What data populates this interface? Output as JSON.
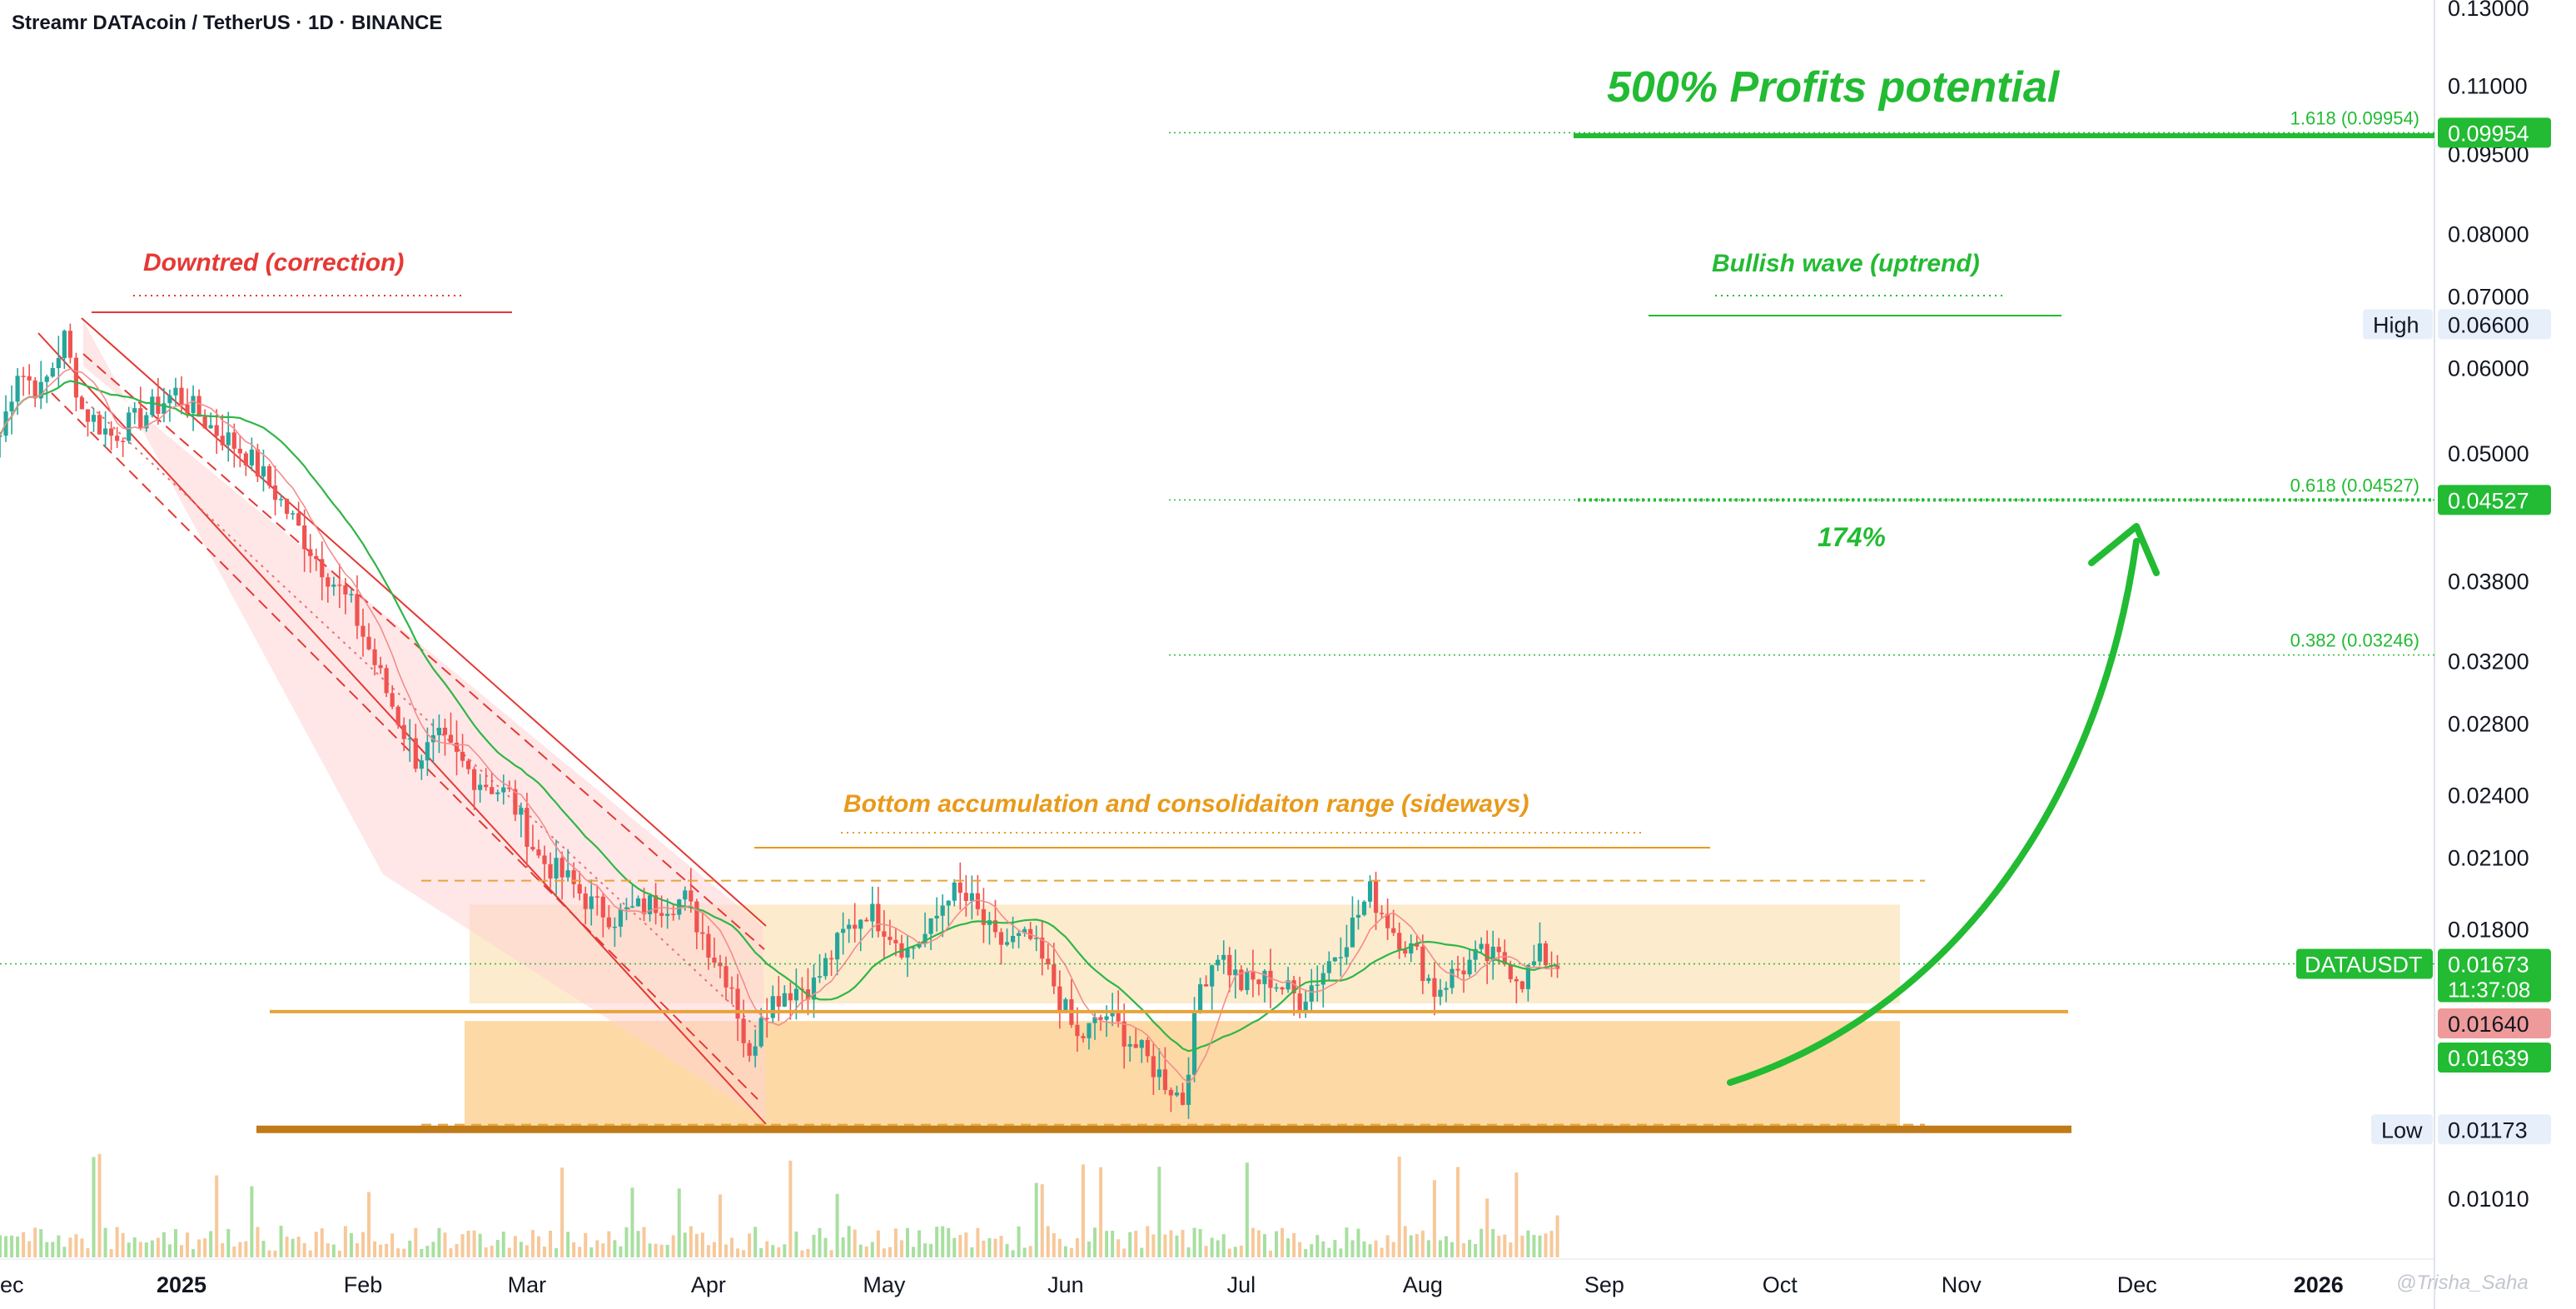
{
  "header": {
    "title": "Streamr DATAcoin / TetherUS · 1D · BINANCE"
  },
  "annotations": {
    "profits": "500% Profits potential",
    "downtrend": "Downtred (correction)",
    "bullish": "Bullish wave (uptrend)",
    "accumulation": "Bottom accumulation and consolidaiton range (sideways)",
    "pct174": "174%"
  },
  "fib": [
    {
      "label": "1.618 (0.09954)",
      "value": 0.09954
    },
    {
      "label": "0.618 (0.04527)",
      "value": 0.04527
    },
    {
      "label": "0.382 (0.03246)",
      "value": 0.03246
    }
  ],
  "price_labels": {
    "fib_top": "0.09954",
    "high_tag": "High",
    "high_value": "0.06600",
    "fib_mid": "0.04527",
    "symbol": "DATAUSDT",
    "last_price": "0.01673",
    "countdown": "11:37:08",
    "red_price": "0.01640",
    "green_price": "0.01639",
    "low_tag": "Low",
    "low_value": "0.01173"
  },
  "watermark": "@Trisha_Saha",
  "colors": {
    "up": "#26a69a",
    "down": "#ef5350",
    "orange": "#e8a33a",
    "green": "#22bb33",
    "red": "#e53935"
  },
  "chart_data": {
    "type": "candlestick",
    "title": "Streamr DATAcoin / TetherUS · 1D · BINANCE",
    "y_scale": "log",
    "y_ticks": [
      0.0101,
      0.01173,
      0.01639,
      0.018,
      0.021,
      0.024,
      0.028,
      0.032,
      0.038,
      0.04527,
      0.05,
      0.06,
      0.066,
      0.07,
      0.08,
      0.095,
      0.09954,
      0.11,
      0.13
    ],
    "y_tick_labels": [
      "0.01010",
      "0.01173",
      "0.01639",
      "0.01800",
      "0.02100",
      "0.02400",
      "0.02800",
      "0.03200",
      "0.03800",
      "0.04527",
      "0.05000",
      "0.06000",
      "0.06600",
      "0.07000",
      "0.08000",
      "0.09500",
      "0.09954",
      "0.11000",
      "0.13000"
    ],
    "x_tick_labels": [
      "ec",
      "2025",
      "Feb",
      "Mar",
      "Apr",
      "May",
      "Jun",
      "Jul",
      "Aug",
      "Sep",
      "Oct",
      "Nov",
      "Dec",
      "2026"
    ],
    "x_tick_dates": [
      "2024-12-01",
      "2025-01-01",
      "2025-02-01",
      "2025-03-01",
      "2025-04-01",
      "2025-05-01",
      "2025-06-01",
      "2025-07-01",
      "2025-08-01",
      "2025-09-01",
      "2025-10-01",
      "2025-11-01",
      "2025-12-01",
      "2026-01-01"
    ],
    "last_price": 0.01673,
    "high": 0.066,
    "low": 0.01173,
    "price_path": [
      {
        "date": "2024-12-01",
        "price": 0.052
      },
      {
        "date": "2024-12-04",
        "price": 0.06
      },
      {
        "date": "2024-12-08",
        "price": 0.057
      },
      {
        "date": "2024-12-12",
        "price": 0.064
      },
      {
        "date": "2024-12-15",
        "price": 0.055
      },
      {
        "date": "2024-12-20",
        "price": 0.052
      },
      {
        "date": "2024-12-25",
        "price": 0.054
      },
      {
        "date": "2024-12-31",
        "price": 0.057
      },
      {
        "date": "2025-01-06",
        "price": 0.053
      },
      {
        "date": "2025-01-12",
        "price": 0.05
      },
      {
        "date": "2025-01-17",
        "price": 0.046
      },
      {
        "date": "2025-01-24",
        "price": 0.04
      },
      {
        "date": "2025-01-30",
        "price": 0.036
      },
      {
        "date": "2025-02-05",
        "price": 0.03
      },
      {
        "date": "2025-02-10",
        "price": 0.026
      },
      {
        "date": "2025-02-14",
        "price": 0.027
      },
      {
        "date": "2025-02-20",
        "price": 0.025
      },
      {
        "date": "2025-02-26",
        "price": 0.024
      },
      {
        "date": "2025-03-03",
        "price": 0.021
      },
      {
        "date": "2025-03-08",
        "price": 0.02
      },
      {
        "date": "2025-03-12",
        "price": 0.019
      },
      {
        "date": "2025-03-16",
        "price": 0.0185
      },
      {
        "date": "2025-03-22",
        "price": 0.019
      },
      {
        "date": "2025-03-28",
        "price": 0.0192
      },
      {
        "date": "2025-04-02",
        "price": 0.017
      },
      {
        "date": "2025-04-05",
        "price": 0.016
      },
      {
        "date": "2025-04-08",
        "price": 0.0135
      },
      {
        "date": "2025-04-10",
        "price": 0.0152
      },
      {
        "date": "2025-04-14",
        "price": 0.0158
      },
      {
        "date": "2025-04-19",
        "price": 0.016
      },
      {
        "date": "2025-04-24",
        "price": 0.0178
      },
      {
        "date": "2025-04-28",
        "price": 0.0188
      },
      {
        "date": "2025-05-01",
        "price": 0.0182
      },
      {
        "date": "2025-05-05",
        "price": 0.0172
      },
      {
        "date": "2025-05-09",
        "price": 0.018
      },
      {
        "date": "2025-05-12",
        "price": 0.0196
      },
      {
        "date": "2025-05-16",
        "price": 0.019
      },
      {
        "date": "2025-05-20",
        "price": 0.0175
      },
      {
        "date": "2025-05-26",
        "price": 0.0176
      },
      {
        "date": "2025-05-30",
        "price": 0.016
      },
      {
        "date": "2025-06-03",
        "price": 0.0142
      },
      {
        "date": "2025-06-08",
        "price": 0.015
      },
      {
        "date": "2025-06-13",
        "price": 0.014
      },
      {
        "date": "2025-06-17",
        "price": 0.0132
      },
      {
        "date": "2025-06-21",
        "price": 0.0125
      },
      {
        "date": "2025-06-24",
        "price": 0.016
      },
      {
        "date": "2025-06-27",
        "price": 0.0172
      },
      {
        "date": "2025-07-01",
        "price": 0.016
      },
      {
        "date": "2025-07-06",
        "price": 0.0162
      },
      {
        "date": "2025-07-11",
        "price": 0.0155
      },
      {
        "date": "2025-07-15",
        "price": 0.0165
      },
      {
        "date": "2025-07-19",
        "price": 0.0178
      },
      {
        "date": "2025-07-23",
        "price": 0.0195
      },
      {
        "date": "2025-07-27",
        "price": 0.018
      },
      {
        "date": "2025-07-31",
        "price": 0.017
      },
      {
        "date": "2025-08-03",
        "price": 0.0158
      },
      {
        "date": "2025-08-07",
        "price": 0.0165
      },
      {
        "date": "2025-08-11",
        "price": 0.017
      },
      {
        "date": "2025-08-15",
        "price": 0.0168
      },
      {
        "date": "2025-08-18",
        "price": 0.0162
      },
      {
        "date": "2025-08-21",
        "price": 0.017
      },
      {
        "date": "2025-08-24",
        "price": 0.01673
      }
    ],
    "ranges": {
      "consolidation": [
        0.01537,
        0.019
      ],
      "accumulation_zone": [
        0.01173,
        0.0148
      ],
      "support": 0.0151,
      "resistance": 0.02
    }
  }
}
